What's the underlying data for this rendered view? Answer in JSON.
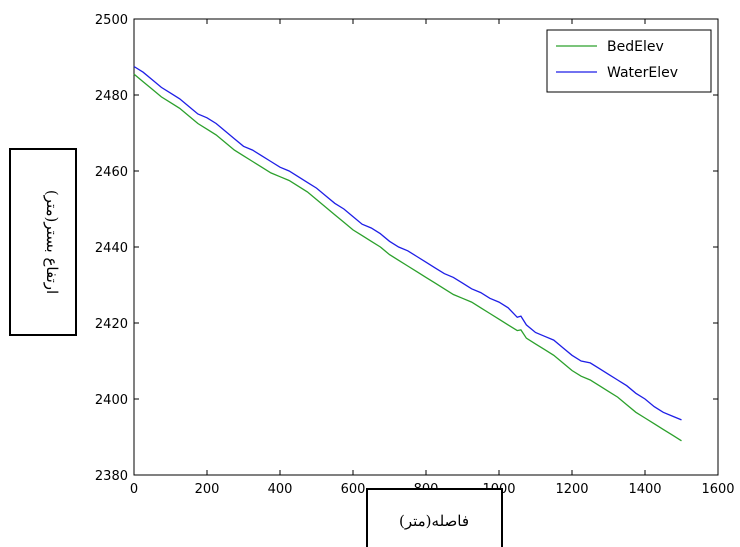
{
  "chart_data": {
    "type": "line",
    "title": "",
    "xlabel": "فاصله(متر)",
    "ylabel": "ارتفاع بستر(متر)",
    "xlim": [
      0,
      1600
    ],
    "ylim": [
      2380,
      2500
    ],
    "xticks": [
      0,
      200,
      400,
      600,
      800,
      1000,
      1200,
      1400,
      1600
    ],
    "yticks": [
      2380,
      2400,
      2420,
      2440,
      2460,
      2480,
      2500
    ],
    "grid": false,
    "legend_position": "top-right",
    "series": [
      {
        "name": "BedElev",
        "color": "#2ca02c",
        "x": [
          0,
          25,
          50,
          75,
          100,
          125,
          150,
          175,
          200,
          225,
          250,
          275,
          300,
          325,
          350,
          375,
          400,
          425,
          450,
          475,
          500,
          525,
          550,
          575,
          600,
          625,
          650,
          675,
          700,
          725,
          750,
          775,
          800,
          825,
          850,
          875,
          900,
          925,
          950,
          975,
          1000,
          1025,
          1050,
          1060,
          1075,
          1100,
          1125,
          1150,
          1175,
          1200,
          1225,
          1250,
          1275,
          1300,
          1325,
          1350,
          1375,
          1400,
          1425,
          1450,
          1475,
          1500
        ],
        "y": [
          2485.5,
          2483.5,
          2481.5,
          2479.5,
          2478.0,
          2476.5,
          2474.5,
          2472.5,
          2471.0,
          2469.5,
          2467.5,
          2465.5,
          2464.0,
          2462.5,
          2461.0,
          2459.5,
          2458.5,
          2457.5,
          2456.0,
          2454.5,
          2452.5,
          2450.5,
          2448.5,
          2446.5,
          2444.5,
          2443.0,
          2441.5,
          2440.0,
          2438.0,
          2436.5,
          2435.0,
          2433.5,
          2432.0,
          2430.5,
          2429.0,
          2427.5,
          2426.5,
          2425.5,
          2424.0,
          2422.5,
          2421.0,
          2419.5,
          2418.0,
          2418.2,
          2416.0,
          2414.5,
          2413.0,
          2411.5,
          2409.5,
          2407.5,
          2406.0,
          2405.0,
          2403.5,
          2402.0,
          2400.5,
          2398.5,
          2396.5,
          2395.0,
          2393.5,
          2392.0,
          2390.5,
          2389.0
        ]
      },
      {
        "name": "WaterElev",
        "color": "#1f1fe6",
        "x": [
          0,
          25,
          50,
          75,
          100,
          125,
          150,
          175,
          200,
          225,
          250,
          275,
          300,
          325,
          350,
          375,
          400,
          425,
          450,
          475,
          500,
          525,
          550,
          575,
          600,
          625,
          650,
          675,
          700,
          725,
          750,
          775,
          800,
          825,
          850,
          875,
          900,
          925,
          950,
          975,
          1000,
          1025,
          1050,
          1060,
          1075,
          1100,
          1125,
          1150,
          1175,
          1200,
          1225,
          1250,
          1275,
          1300,
          1325,
          1350,
          1375,
          1400,
          1425,
          1450,
          1475,
          1500
        ],
        "y": [
          2487.5,
          2486.0,
          2484.0,
          2482.0,
          2480.5,
          2479.0,
          2477.0,
          2475.0,
          2474.0,
          2472.5,
          2470.5,
          2468.5,
          2466.5,
          2465.5,
          2464.0,
          2462.5,
          2461.0,
          2460.0,
          2458.5,
          2457.0,
          2455.5,
          2453.5,
          2451.5,
          2450.0,
          2448.0,
          2446.0,
          2445.0,
          2443.5,
          2441.5,
          2440.0,
          2439.0,
          2437.5,
          2436.0,
          2434.5,
          2433.0,
          2432.0,
          2430.5,
          2429.0,
          2428.0,
          2426.5,
          2425.5,
          2424.0,
          2421.5,
          2421.8,
          2419.5,
          2417.5,
          2416.5,
          2415.5,
          2413.5,
          2411.5,
          2410.0,
          2409.5,
          2408.0,
          2406.5,
          2405.0,
          2403.5,
          2401.5,
          2400.0,
          2398.0,
          2396.5,
          2395.5,
          2394.5
        ]
      }
    ]
  }
}
